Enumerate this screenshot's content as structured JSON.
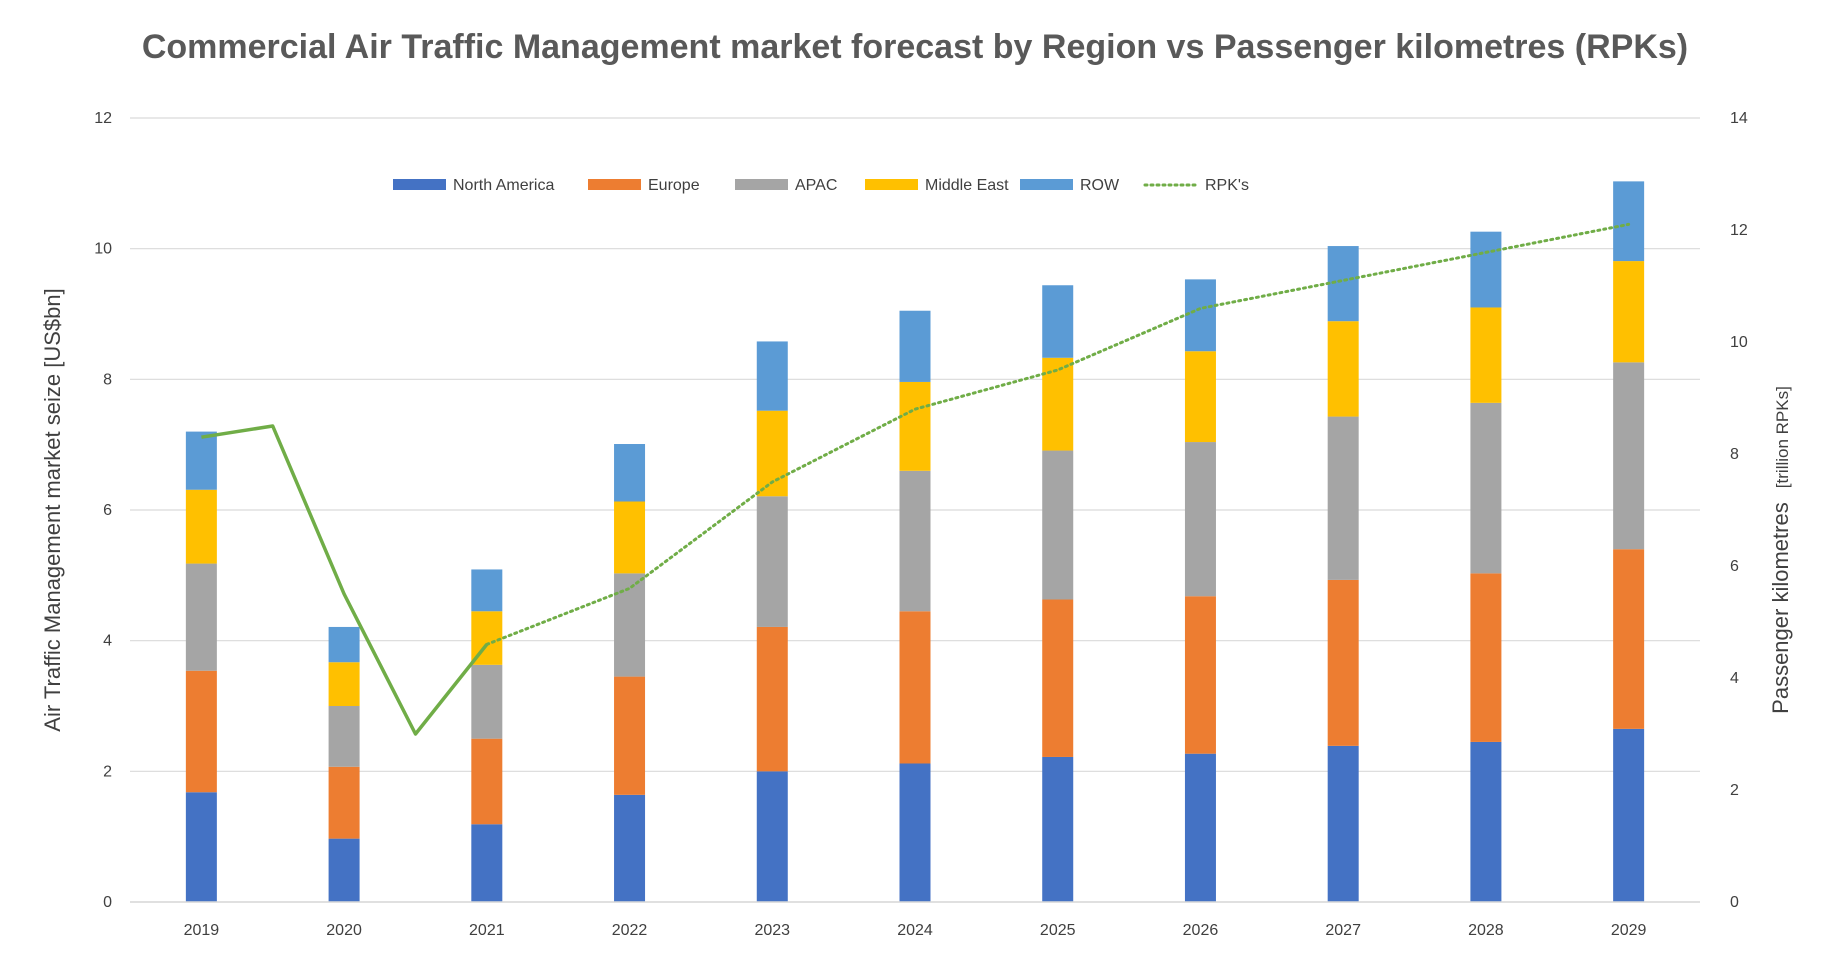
{
  "chart_data": {
    "type": "bar",
    "subtype": "stacked-bar-with-line",
    "title": "Commercial Air Traffic Management market forecast by Region vs Passenger kilometres (RPKs)",
    "ylabel": "Air Traffic Management  market seize [US$bn]",
    "y2label_main": "Passenger kilometres",
    "y2label_unit": "[trillion RPKs]",
    "ylim": [
      0,
      12
    ],
    "yticks": [
      "0",
      "2",
      "4",
      "6",
      "8",
      "10",
      "12"
    ],
    "y2lim": [
      0,
      14
    ],
    "y2ticks": [
      "0",
      "2",
      "4",
      "6",
      "8",
      "10",
      "12",
      "14"
    ],
    "grid": true,
    "legend_position": "top",
    "categories": [
      "2019",
      "2020",
      "2021",
      "2022",
      "2023",
      "2024",
      "2025",
      "2026",
      "2027",
      "2028",
      "2029"
    ],
    "series": [
      {
        "name": "North America",
        "color": "#4472c4",
        "values": [
          1.68,
          0.97,
          1.19,
          1.64,
          2.0,
          2.12,
          2.22,
          2.27,
          2.39,
          2.45,
          2.65
        ]
      },
      {
        "name": "Europe",
        "color": "#ed7d31",
        "values": [
          1.86,
          1.1,
          1.31,
          1.81,
          2.21,
          2.33,
          2.41,
          2.41,
          2.54,
          2.58,
          2.75
        ]
      },
      {
        "name": "APAC",
        "color": "#a5a5a5",
        "values": [
          1.64,
          0.93,
          1.13,
          1.58,
          2.0,
          2.15,
          2.28,
          2.36,
          2.5,
          2.61,
          2.86
        ]
      },
      {
        "name": "Middle East",
        "color": "#ffc000",
        "values": [
          1.13,
          0.67,
          0.82,
          1.1,
          1.31,
          1.36,
          1.42,
          1.39,
          1.46,
          1.46,
          1.55
        ]
      },
      {
        "name": "ROW",
        "color": "#5b9bd5",
        "values": [
          0.89,
          0.54,
          0.64,
          0.88,
          1.06,
          1.09,
          1.11,
          1.1,
          1.15,
          1.16,
          1.22
        ]
      }
    ],
    "line_series": {
      "name": "RPK's",
      "color": "#70ad47",
      "axis": "secondary",
      "solid_part": {
        "x": [
          0,
          0.5,
          1,
          1.5,
          2
        ],
        "values": [
          8.3,
          8.5,
          5.5,
          3.0,
          4.6
        ]
      },
      "dotted_part": {
        "x": [
          2,
          3,
          4,
          5,
          6,
          7,
          8,
          9,
          10
        ],
        "values": [
          4.6,
          5.6,
          7.5,
          8.8,
          9.5,
          10.6,
          11.1,
          11.6,
          12.1
        ]
      }
    }
  }
}
